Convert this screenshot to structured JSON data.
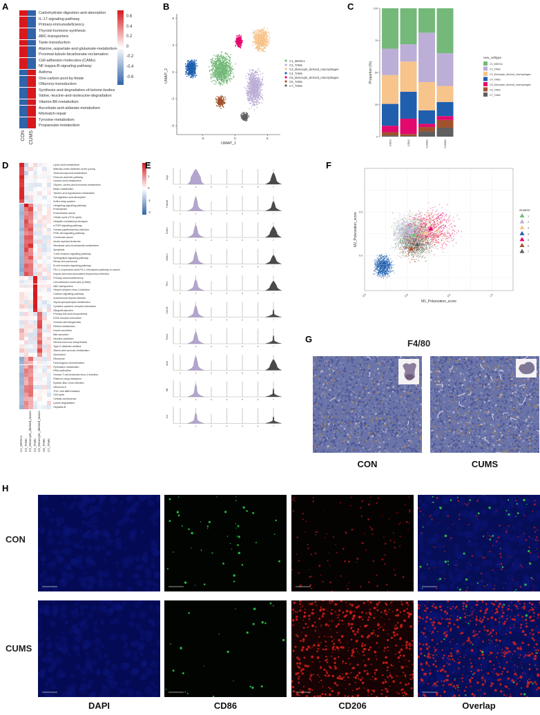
{
  "figure": {
    "panel_letters": [
      "A",
      "B",
      "C",
      "D",
      "E",
      "F",
      "G",
      "H"
    ]
  },
  "panel_a": {
    "letter": "A",
    "columns": [
      "CON",
      "CUMS"
    ],
    "rows": [
      "Carbohydrate-digestion-and-absorption",
      "IL-17-signaling-pathway",
      "Primary-immunodeficiency",
      "Thyroid-hormone-synthesis",
      "ABC-transporters",
      "Taste-transduction",
      "Alanine,-aspartate-and-glutamate-metabolism",
      "Proximal-tubule-bicarbonate-reclamation",
      "Cell-adhesion-molecules-(CAMs)",
      "NF-kappa-B-signaling-pathway",
      "Asthma",
      "One-carbon-pool-by-folate",
      "Olfactory-transduction",
      "Synthesis-and-degradation-of-ketone-bodies",
      "Valine,-leucine-and-isoleucine-degradation",
      "Vitamin-B6-metabolism",
      "Ascorbate-and-aldarate-metabolism",
      "Mismatch-repair",
      "Tyrosine-metabolism",
      "Propanoate-metabolism"
    ],
    "legend_ticks": [
      "0.6",
      "0.4",
      "0.2",
      "0",
      "-0.2",
      "-0.4",
      "-0.6"
    ],
    "colors": {
      "high": "#d7191c",
      "mid": "#ffffff",
      "low": "#3a6fb0"
    }
  },
  "panel_b": {
    "letter": "B",
    "xlabel": "UMAP_1",
    "ylabel": "UMAP_2",
    "xticks": [
      "-5",
      "0",
      "5"
    ],
    "yticks": [
      "6",
      "3",
      "0",
      "-3",
      "-6"
    ],
    "legend": [
      {
        "label": "C1_MDSCs",
        "color": "#74b97a"
      },
      {
        "label": "C2_TAMs",
        "color": "#bcaed6"
      },
      {
        "label": "C3_Monocyte_derived_macrophages",
        "color": "#f7c48c"
      },
      {
        "label": "C4_TAMs",
        "color": "#1f5fae"
      },
      {
        "label": "C5_Monocyte_derived_macrophages",
        "color": "#e3086e"
      },
      {
        "label": "C6_TAMs",
        "color": "#a0522d"
      },
      {
        "label": "C7_TAMs",
        "color": "#5f5f5f"
      }
    ]
  },
  "panel_c": {
    "letter": "C",
    "ylabel": "Proportion (%)",
    "legend_title": "new_celltype",
    "yticks": [
      "100",
      "75",
      "50",
      "25",
      "0"
    ]
  },
  "panel_d": {
    "letter": "D",
    "columns": [
      "C1_MDSCs",
      "C2_TAMs",
      "C3_Monocyte_derived_macrophages",
      "C4_TAMs",
      "C5_Monocyte_derived_macrophages",
      "C6_TAMs",
      "C7_TAMs"
    ],
    "rows": [
      "Lipoic-acid-metabolism",
      "Maturity-onset-diabetes-of-the-young",
      "Selenocompound-metabolism",
      "Paroxon-arsenite-pathway",
      "Linoleic-acid-metabolism",
      "Glycine,-serine-and-threonine-metabolism",
      "Biotin-metabolism",
      "Taurine-and-hypotaurine-metabolism",
      "Fat-digestion-and-absorption",
      "Sulfur-relay-system",
      "Hedgehog-signaling-pathway",
      "Endocytosis",
      "Endometrial-cancer",
      "Citrate-cycle-(TCA-cycle)",
      "Ubiquitin-mediated-proteolysis",
      "mTOR-signaling-pathway",
      "Human-papillomavirus-infection",
      "PI3K-Akt-signaling-pathway",
      "Colorectal-cancer",
      "Acute-myeloid-leukemia",
      "Nicotinate-and-nicotinamide-metabolism",
      "Apoptosis",
      "T-cell-receptor-signaling-pathway",
      "Sphingolipid-signaling-pathway",
      "Renal-cell-carcinoma",
      "B-cell-receptor-signaling-pathway",
      "PD-L1-expression-and-PD-1-checkpoint-pathway-in-cancer",
      "Kaposi-sarcoma-associated-herpesvirus-infection",
      "Primary-immunodeficiency",
      "Cell-adhesion-molecules-(CAMs)",
      "ABC-transporters",
      "Herpes-simplex-virus-1-infection",
      "Calcium-signaling-pathway",
      "Autoimmune-thyroid-disease",
      "Glycerophospholipid-metabolism",
      "Cytokine-cytokine-receptor-interaction",
      "Allograft-rejection",
      "Primary-bile-acid-biosynthesis",
      "ECM-receptor-interaction",
      "Ovarian-steroidogenesis",
      "Retinol-metabolism",
      "Insulin-secretion",
      "Bile-secretion",
      "Nicotine-addiction",
      "Steroid-hormone-biosynthesis",
      "Type-II-diabetes-mellitus",
      "Starch-and-sucrose-metabolism",
      "Alcoholism",
      "Ribosome",
      "Homologous-recombination",
      "Pyrimidine-metabolism",
      "DNA-replication",
      "Human-T-cell-leukemia-virus-1-infection",
      "Platinum-drug-resistance",
      "Epstein-Barr-virus-infection",
      "Influenza-A",
      "Th17-cell-differentiation",
      "Cell-cycle",
      "Cellular-senescence",
      "Lysine-degradation",
      "Hepatitis-B"
    ],
    "legend_ticks": [
      "2",
      "1",
      "0",
      "-1",
      "-2"
    ]
  },
  "panel_e": {
    "letter": "E",
    "genes": [
      "Arg1",
      "Tmem8",
      "Emilin",
      "Nt5dc1",
      "Flrt1",
      "Cd163",
      "Thbs1",
      "Actb",
      "Mif",
      "Ccl"
    ],
    "clusters": [
      "1",
      "2",
      "3",
      "4",
      "5",
      "6",
      "7"
    ],
    "yticks": [
      "0",
      "1",
      "2",
      "3"
    ]
  },
  "panel_f": {
    "letter": "F",
    "xlabel": "M1_Polarization_score",
    "ylabel": "M2_Polarization_score",
    "xticks": [
      "-0.5",
      "0.0",
      "0.5",
      "1.0"
    ],
    "yticks": [
      "0.5",
      "0.0"
    ],
    "legend_title": "clusters",
    "legend": [
      "1",
      "2",
      "3",
      "4",
      "5",
      "6",
      "7"
    ]
  },
  "panel_g": {
    "letter": "G",
    "title": "F4/80",
    "labels": [
      "CON",
      "CUMS"
    ]
  },
  "panel_h": {
    "letter": "H",
    "rows": [
      "CON",
      "CUMS"
    ],
    "columns": [
      "DAPI",
      "CD86",
      "CD206",
      "Overlap"
    ]
  },
  "chart_data": [
    {
      "panel": "A",
      "type": "heatmap",
      "title": "",
      "xlabel": "",
      "ylabel": "",
      "x": [
        "CON",
        "CUMS"
      ],
      "y": [
        "Carbohydrate-digestion-and-absorption",
        "IL-17-signaling-pathway",
        "Primary-immunodeficiency",
        "Thyroid-hormone-synthesis",
        "ABC-transporters",
        "Taste-transduction",
        "Alanine,-aspartate-and-glutamate-metabolism",
        "Proximal-tubule-bicarbonate-reclamation",
        "Cell-adhesion-molecules-(CAMs)",
        "NF-kappa-B-signaling-pathway",
        "Asthma",
        "One-carbon-pool-by-folate",
        "Olfactory-transduction",
        "Synthesis-and-degradation-of-ketone-bodies",
        "Valine,-leucine-and-isoleucine-degradation",
        "Vitamin-B6-metabolism",
        "Ascorbate-and-aldarate-metabolism",
        "Mismatch-repair",
        "Tyrosine-metabolism",
        "Propanoate-metabolism"
      ],
      "values": [
        [
          0.7,
          -0.7
        ],
        [
          0.7,
          -0.7
        ],
        [
          0.7,
          -0.7
        ],
        [
          0.7,
          -0.7
        ],
        [
          0.7,
          -0.7
        ],
        [
          0.7,
          -0.7
        ],
        [
          0.7,
          -0.7
        ],
        [
          0.7,
          -0.7
        ],
        [
          0.7,
          -0.7
        ],
        [
          0.7,
          -0.7
        ],
        [
          -0.7,
          0.7
        ],
        [
          -0.7,
          0.7
        ],
        [
          -0.7,
          0.7
        ],
        [
          -0.7,
          0.7
        ],
        [
          -0.7,
          0.7
        ],
        [
          -0.7,
          0.7
        ],
        [
          -0.7,
          0.7
        ],
        [
          -0.7,
          0.7
        ],
        [
          -0.7,
          0.7
        ],
        [
          -0.7,
          0.7
        ]
      ],
      "colorbar_range": [
        -0.7,
        0.7
      ]
    },
    {
      "panel": "B",
      "type": "scatter",
      "title": "",
      "xlabel": "UMAP_1",
      "ylabel": "UMAP_2",
      "xlim": [
        -9,
        7
      ],
      "ylim": [
        -7,
        6.5
      ],
      "series": [
        {
          "name": "C1_MDSCs",
          "centroid": [
            -2,
            0.5
          ]
        },
        {
          "name": "C2_TAMs",
          "centroid": [
            3,
            -2
          ]
        },
        {
          "name": "C3_Monocyte_derived_macrophages",
          "centroid": [
            4,
            3.5
          ]
        },
        {
          "name": "C4_TAMs",
          "centroid": [
            -7,
            0.5
          ]
        },
        {
          "name": "C5_Monocyte_derived_macrophages",
          "centroid": [
            0.5,
            3.5
          ]
        },
        {
          "name": "C6_TAMs",
          "centroid": [
            -2,
            -3
          ]
        },
        {
          "name": "C7_TAMs",
          "centroid": [
            1.5,
            -5
          ]
        }
      ],
      "legend_position": "right"
    },
    {
      "panel": "C",
      "type": "bar",
      "stacked": true,
      "title": "",
      "xlabel": "",
      "ylabel": "Proportion (%)",
      "ylim": [
        0,
        100
      ],
      "categories": [
        "CON1",
        "CON2",
        "CUMS1",
        "CUMS2"
      ],
      "series": [
        {
          "name": "C7_TAMs",
          "values": [
            1,
            0.5,
            4,
            7
          ]
        },
        {
          "name": "C6_TAMs",
          "values": [
            2.5,
            1.5,
            3.5,
            6
          ]
        },
        {
          "name": "C5_Monocyte_derived_macrophages",
          "values": [
            5,
            12,
            2.5,
            3
          ]
        },
        {
          "name": "C4_TAMs",
          "values": [
            17,
            21,
            10.5,
            11
          ]
        },
        {
          "name": "C3_Monocyte_derived_macrophages",
          "values": [
            22.5,
            23.5,
            22,
            12.5
          ]
        },
        {
          "name": "C2_TAMs",
          "values": [
            20.5,
            13.5,
            38.5,
            25.5
          ]
        },
        {
          "name": "C1_MDSCs",
          "values": [
            31.5,
            28,
            19,
            35
          ]
        }
      ],
      "legend_title": "new_celltype",
      "legend_position": "right"
    },
    {
      "panel": "D",
      "type": "heatmap",
      "title": "",
      "x": [
        "C1_MDSCs",
        "C2_TAMs",
        "C3_Monocyte_derived_macrophages",
        "C4_TAMs",
        "C5_Monocyte_derived_macrophages",
        "C6_TAMs",
        "C7_TAMs"
      ],
      "colorbar_range": [
        -2,
        2
      ]
    },
    {
      "panel": "E",
      "type": "violin",
      "genes": [
        "Arg1",
        "Tmem8",
        "Emilin",
        "Nt5dc1",
        "Flrt1",
        "Cd163",
        "Thbs1",
        "Actb",
        "Mif",
        "Ccl"
      ],
      "x": [
        "1",
        "2",
        "3",
        "4",
        "5",
        "6",
        "7"
      ],
      "ylim": [
        0,
        3
      ],
      "high_expression_clusters": [
        "2",
        "7"
      ]
    },
    {
      "panel": "F",
      "type": "scatter",
      "title": "",
      "xlabel": "M1_Polarization_score",
      "ylabel": "M2_Polarization_score",
      "xlim": [
        -0.5,
        1.5
      ],
      "ylim": [
        -0.5,
        1.0
      ],
      "series": [
        {
          "name": "1",
          "centroid": [
            0.08,
            0.24
          ],
          "color": "#74b97a"
        },
        {
          "name": "2",
          "centroid": [
            0.05,
            0.28
          ],
          "color": "#bcaed6"
        },
        {
          "name": "3",
          "centroid": [
            0.22,
            0.26
          ],
          "color": "#f7c48c"
        },
        {
          "name": "4",
          "centroid": [
            -0.27,
            -0.08
          ],
          "color": "#1f5fae"
        },
        {
          "name": "5",
          "centroid": [
            0.28,
            0.31
          ],
          "color": "#e3086e"
        },
        {
          "name": "6",
          "centroid": [
            0.05,
            0.08
          ],
          "color": "#a0522d"
        },
        {
          "name": "7",
          "centroid": [
            0.12,
            0.13
          ],
          "color": "#5f5f5f"
        }
      ],
      "legend_title": "clusters",
      "legend_position": "right",
      "grid": true
    }
  ]
}
